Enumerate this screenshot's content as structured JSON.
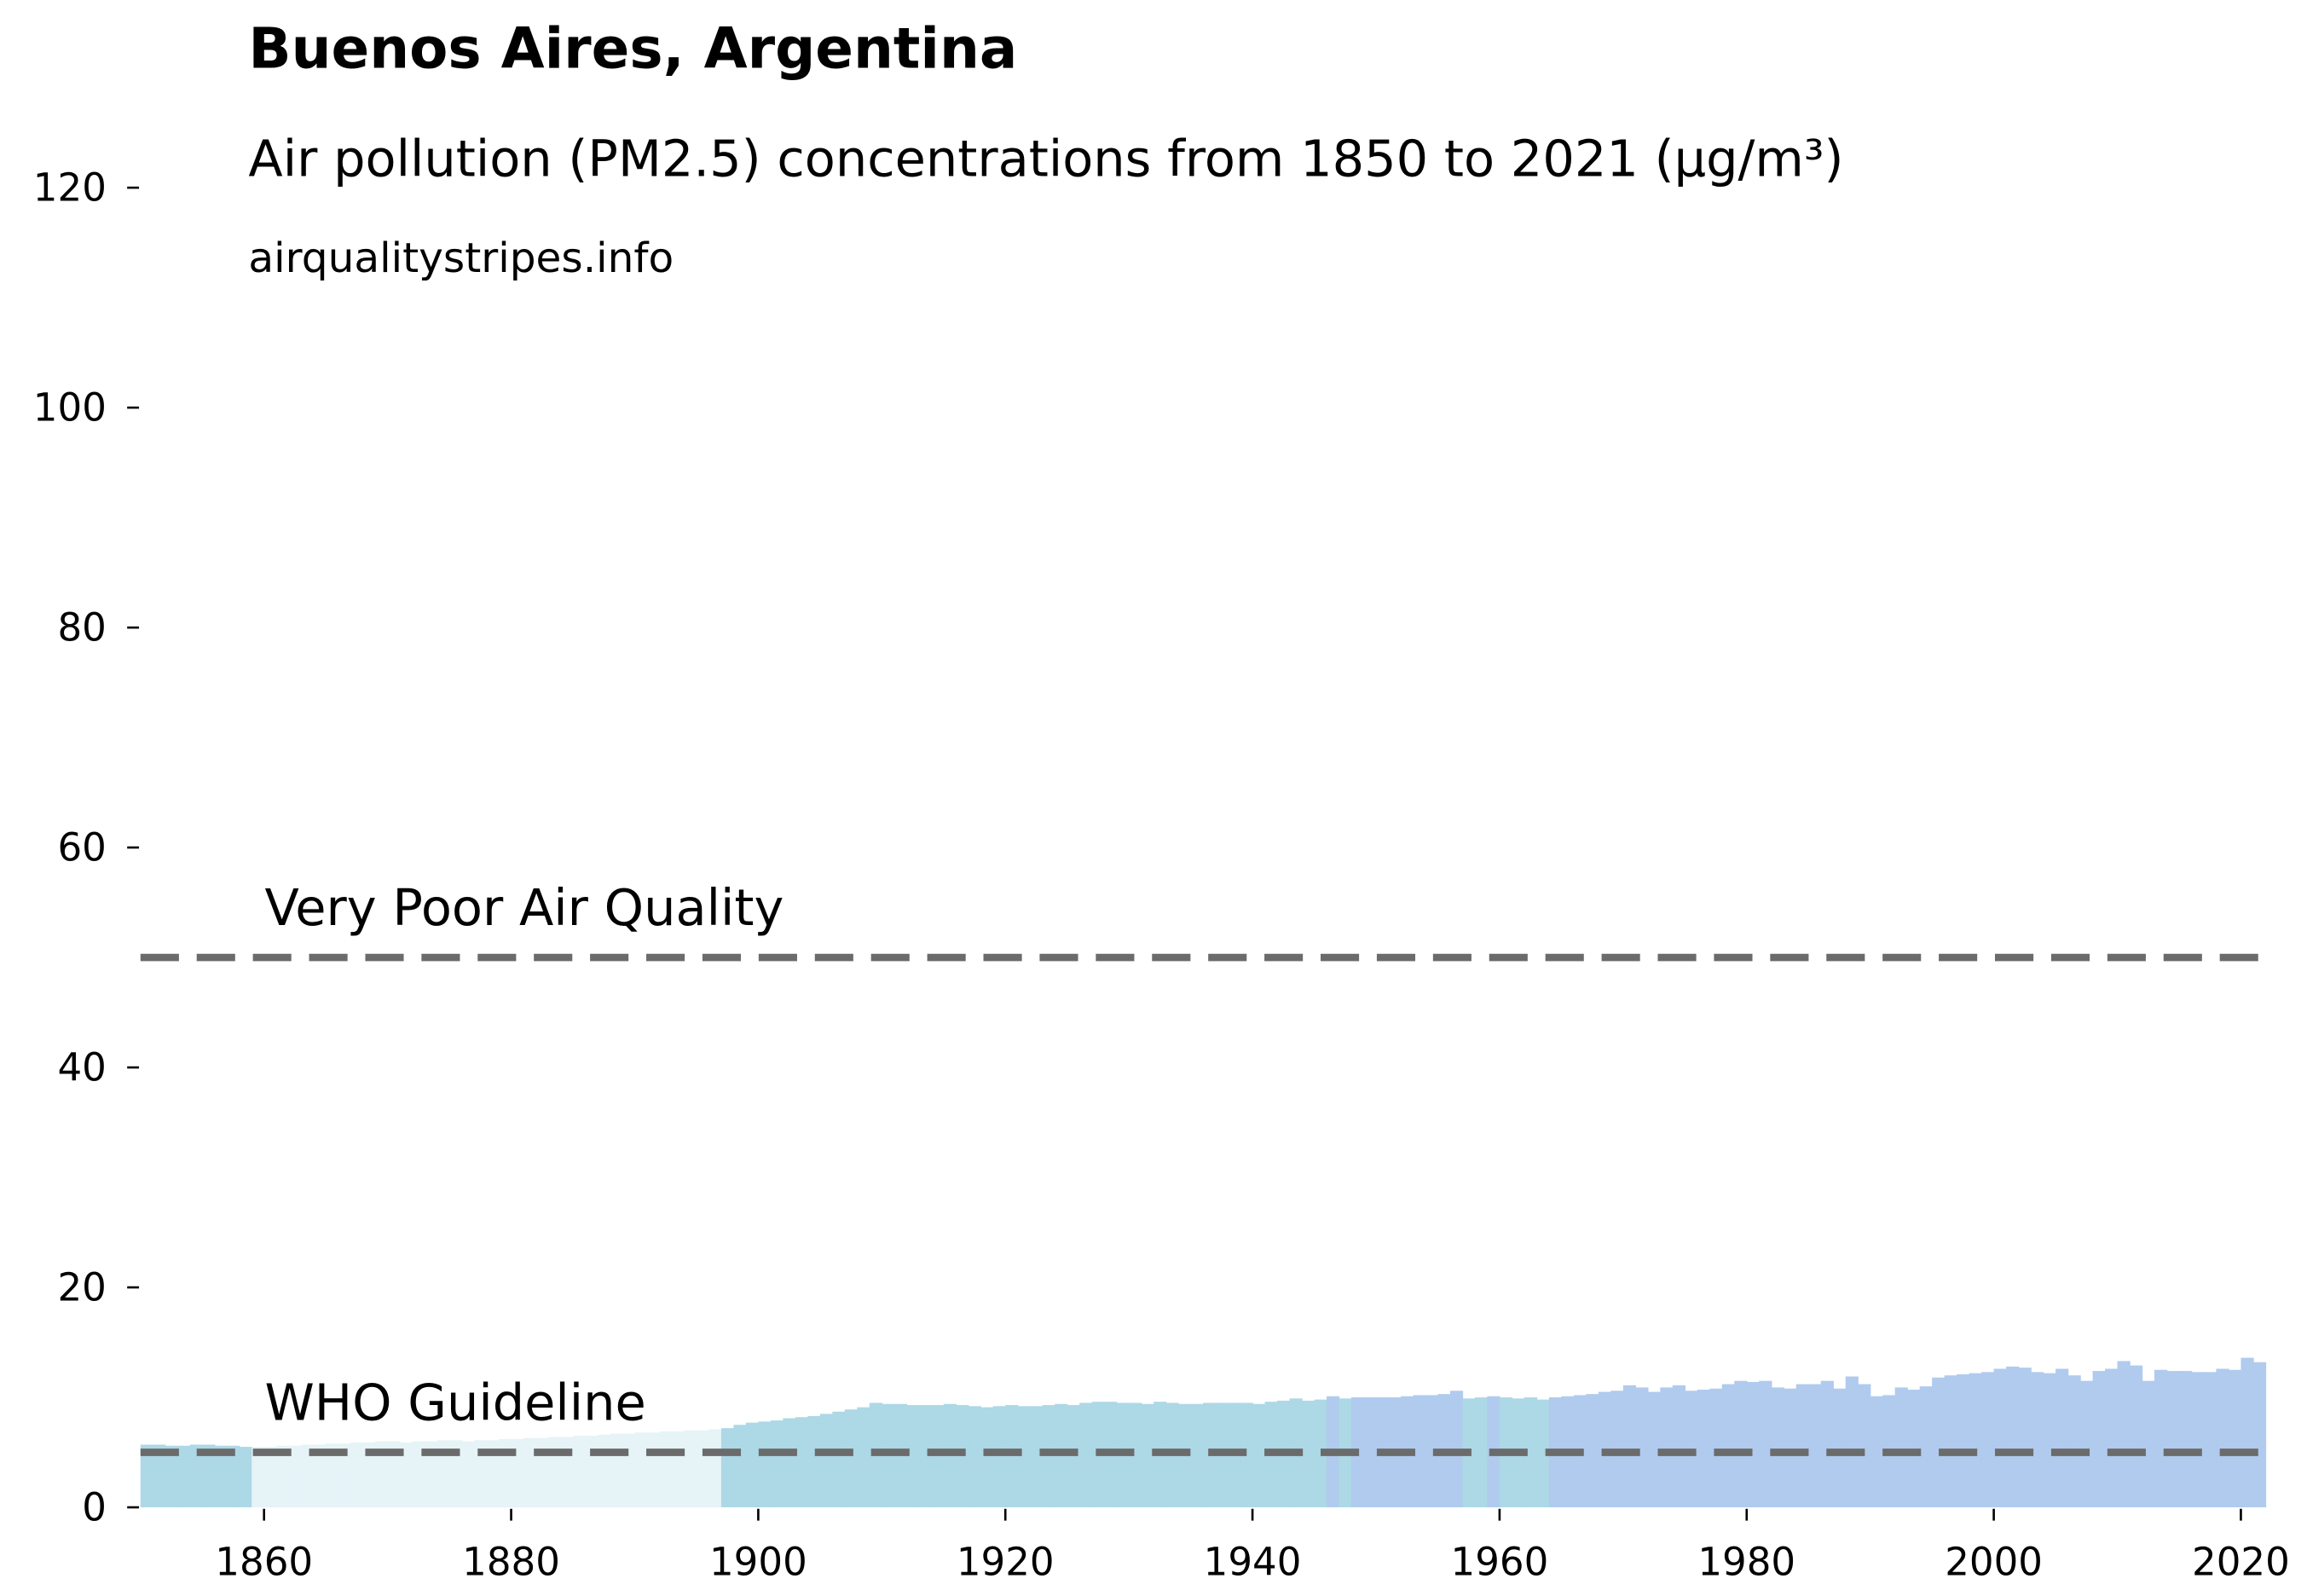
{
  "chart_data": {
    "type": "bar",
    "title": "Buenos Aires, Argentina",
    "subtitle": "Air pollution (PM2.5) concentrations from 1850 to 2021 (µg/m³)",
    "source": "airqualitystripes.info",
    "x": [
      1850,
      1851,
      1852,
      1853,
      1854,
      1855,
      1856,
      1857,
      1858,
      1859,
      1860,
      1861,
      1862,
      1863,
      1864,
      1865,
      1866,
      1867,
      1868,
      1869,
      1870,
      1871,
      1872,
      1873,
      1874,
      1875,
      1876,
      1877,
      1878,
      1879,
      1880,
      1881,
      1882,
      1883,
      1884,
      1885,
      1886,
      1887,
      1888,
      1889,
      1890,
      1891,
      1892,
      1893,
      1894,
      1895,
      1896,
      1897,
      1898,
      1899,
      1900,
      1901,
      1902,
      1903,
      1904,
      1905,
      1906,
      1907,
      1908,
      1909,
      1910,
      1911,
      1912,
      1913,
      1914,
      1915,
      1916,
      1917,
      1918,
      1919,
      1920,
      1921,
      1922,
      1923,
      1924,
      1925,
      1926,
      1927,
      1928,
      1929,
      1930,
      1931,
      1932,
      1933,
      1934,
      1935,
      1936,
      1937,
      1938,
      1939,
      1940,
      1941,
      1942,
      1943,
      1944,
      1945,
      1946,
      1947,
      1948,
      1949,
      1950,
      1951,
      1952,
      1953,
      1954,
      1955,
      1956,
      1957,
      1958,
      1959,
      1960,
      1961,
      1962,
      1963,
      1964,
      1965,
      1966,
      1967,
      1968,
      1969,
      1970,
      1971,
      1972,
      1973,
      1974,
      1975,
      1976,
      1977,
      1978,
      1979,
      1980,
      1981,
      1982,
      1983,
      1984,
      1985,
      1986,
      1987,
      1988,
      1989,
      1990,
      1991,
      1992,
      1993,
      1994,
      1995,
      1996,
      1997,
      1998,
      1999,
      2000,
      2001,
      2002,
      2003,
      2004,
      2005,
      2006,
      2007,
      2008,
      2009,
      2010,
      2011,
      2012,
      2013,
      2014,
      2015,
      2016,
      2017,
      2018,
      2019,
      2020,
      2021
    ],
    "values": [
      5.7,
      5.7,
      5.6,
      5.6,
      5.7,
      5.7,
      5.6,
      5.6,
      5.5,
      5.5,
      5.5,
      5.6,
      5.6,
      5.7,
      5.7,
      5.8,
      5.8,
      5.9,
      5.9,
      6.0,
      6.0,
      5.9,
      6.0,
      6.0,
      6.1,
      6.1,
      6.0,
      6.1,
      6.1,
      6.2,
      6.2,
      6.3,
      6.3,
      6.4,
      6.4,
      6.5,
      6.5,
      6.6,
      6.7,
      6.7,
      6.8,
      6.8,
      6.9,
      6.9,
      7.0,
      7.0,
      7.1,
      7.2,
      7.5,
      7.7,
      7.8,
      7.9,
      8.1,
      8.2,
      8.3,
      8.5,
      8.7,
      8.9,
      9.1,
      9.5,
      9.4,
      9.4,
      9.3,
      9.3,
      9.3,
      9.4,
      9.3,
      9.2,
      9.1,
      9.2,
      9.3,
      9.2,
      9.2,
      9.3,
      9.4,
      9.3,
      9.5,
      9.6,
      9.6,
      9.5,
      9.5,
      9.4,
      9.6,
      9.5,
      9.4,
      9.4,
      9.5,
      9.5,
      9.5,
      9.5,
      9.4,
      9.6,
      9.7,
      9.9,
      9.7,
      9.8,
      10.1,
      9.9,
      10.0,
      10.0,
      10.0,
      10.0,
      10.1,
      10.2,
      10.2,
      10.3,
      10.6,
      9.9,
      10.0,
      10.1,
      10.0,
      9.9,
      10.0,
      9.8,
      10.0,
      10.1,
      10.2,
      10.3,
      10.5,
      10.6,
      11.1,
      10.9,
      10.5,
      10.9,
      11.1,
      10.6,
      10.7,
      10.8,
      11.2,
      11.5,
      11.4,
      11.5,
      10.9,
      10.8,
      11.2,
      11.2,
      11.5,
      10.8,
      11.9,
      11.2,
      10.1,
      10.2,
      10.9,
      10.7,
      11.0,
      11.8,
      12.0,
      12.1,
      12.2,
      12.3,
      12.6,
      12.8,
      12.7,
      12.3,
      12.2,
      12.6,
      12.0,
      11.5,
      12.4,
      12.6,
      13.3,
      12.9,
      11.5,
      12.5,
      12.4,
      12.4,
      12.3,
      12.3,
      12.6,
      12.5,
      13.6,
      13.2
    ],
    "colors": [
      "#add8e6",
      "#add8e6",
      "#add8e6",
      "#add8e6",
      "#add8e6",
      "#add8e6",
      "#add8e6",
      "#add8e6",
      "#add8e6",
      "#e6f3f7",
      "#e6f3f7",
      "#e6f3f7",
      "#e6f3f7",
      "#e6f3f7",
      "#e6f3f7",
      "#e6f3f7",
      "#e6f3f7",
      "#e6f3f7",
      "#e6f3f7",
      "#e6f3f7",
      "#e6f3f7",
      "#e6f3f7",
      "#e6f3f7",
      "#e6f3f7",
      "#e6f3f7",
      "#e6f3f7",
      "#e6f3f7",
      "#e6f3f7",
      "#e6f3f7",
      "#e6f3f7",
      "#e6f3f7",
      "#e6f3f7",
      "#e6f3f7",
      "#e6f3f7",
      "#e6f3f7",
      "#e6f3f7",
      "#e6f3f7",
      "#e6f3f7",
      "#e6f3f7",
      "#e6f3f7",
      "#e6f3f7",
      "#e6f3f7",
      "#e6f3f7",
      "#e6f3f7",
      "#e6f3f7",
      "#e6f3f7",
      "#e6f3f7",
      "#add8e6",
      "#add8e6",
      "#add8e6",
      "#add8e6",
      "#add8e6",
      "#add8e6",
      "#add8e6",
      "#add8e6",
      "#add8e6",
      "#add8e6",
      "#add8e6",
      "#add8e6",
      "#add8e6",
      "#add8e6",
      "#add8e6",
      "#add8e6",
      "#add8e6",
      "#add8e6",
      "#add8e6",
      "#add8e6",
      "#add8e6",
      "#add8e6",
      "#add8e6",
      "#add8e6",
      "#add8e6",
      "#add8e6",
      "#add8e6",
      "#add8e6",
      "#add8e6",
      "#add8e6",
      "#add8e6",
      "#add8e6",
      "#add8e6",
      "#add8e6",
      "#add8e6",
      "#add8e6",
      "#add8e6",
      "#add8e6",
      "#add8e6",
      "#add8e6",
      "#add8e6",
      "#add8e6",
      "#add8e6",
      "#add8e6",
      "#add8e6",
      "#add8e6",
      "#add8e6",
      "#add8e6",
      "#add8e6",
      "#b0cbee",
      "#add8e6",
      "#b0cbee",
      "#b0cbee",
      "#b0cbee",
      "#b0cbee",
      "#b0cbee",
      "#b0cbee",
      "#b0cbee",
      "#b0cbee",
      "#b0cbee",
      "#add8e6",
      "#add8e6",
      "#b0cbee",
      "#add8e6",
      "#add8e6",
      "#add8e6",
      "#add8e6",
      "#b0cbee",
      "#b0cbee",
      "#b0cbee",
      "#b0cbee",
      "#b0cbee",
      "#b0cbee",
      "#b0cbee",
      "#b0cbee",
      "#b0cbee",
      "#b0cbee",
      "#b0cbee",
      "#b0cbee",
      "#b0cbee",
      "#b0cbee",
      "#b0cbee",
      "#b0cbee",
      "#b0cbee",
      "#b0cbee",
      "#b0cbee",
      "#b0cbee",
      "#b0cbee",
      "#b0cbee",
      "#b0cbee",
      "#b0cbee",
      "#b0cbee",
      "#b0cbee",
      "#b0cbee",
      "#b0cbee",
      "#b0cbee",
      "#b0cbee",
      "#b0cbee",
      "#b0cbee",
      "#b0cbee",
      "#b0cbee",
      "#b0cbee",
      "#b0cbee",
      "#b0cbee",
      "#b0cbee",
      "#b0cbee",
      "#b0cbee",
      "#b0cbee",
      "#b0cbee",
      "#b0cbee",
      "#b0cbee",
      "#b0cbee",
      "#b0cbee",
      "#b0cbee",
      "#b0cbee",
      "#b0cbee",
      "#b0cbee",
      "#b0cbee",
      "#b0cbee",
      "#b0cbee",
      "#b0cbee",
      "#b0cbee",
      "#b0cbee",
      "#b0cbee",
      "#b0cbee"
    ],
    "reference_lines": [
      {
        "label": "WHO Guideline",
        "value": 5
      },
      {
        "label": "Very Poor Air Quality",
        "value": 50
      }
    ],
    "reference_color": "#6b6b6b",
    "xlim": [
      1850,
      2022
    ],
    "xticks": [
      1860,
      1880,
      1900,
      1920,
      1940,
      1960,
      1980,
      2000,
      2020
    ],
    "ylim": [
      0,
      120
    ],
    "yticks": [
      0,
      20,
      40,
      60,
      80,
      100,
      120
    ]
  }
}
